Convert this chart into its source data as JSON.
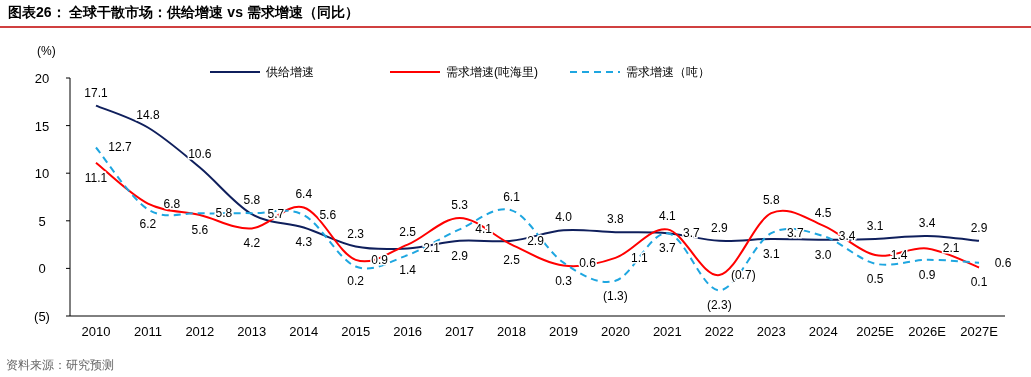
{
  "chart_data": {
    "type": "line",
    "title": "图表26：  全球干散市场：供给增速 vs 需求增速（同比）",
    "ylabel": "(%)",
    "categories": [
      "2010",
      "2011",
      "2012",
      "2013",
      "2014",
      "2015",
      "2016",
      "2017",
      "2018",
      "2019",
      "2020",
      "2021",
      "2022",
      "2023",
      "2024",
      "2025E",
      "2026E",
      "2027E"
    ],
    "series": [
      {
        "name": "供给增速",
        "color": "#0f1f5c",
        "line_style": "solid",
        "values": [
          17.1,
          14.8,
          10.6,
          5.7,
          4.3,
          2.3,
          2.1,
          2.9,
          2.9,
          4.0,
          3.8,
          3.7,
          2.9,
          3.1,
          3.0,
          3.1,
          3.4,
          2.9
        ],
        "value_labels": [
          "17.1",
          "14.8",
          "10.6",
          "5.7",
          "4.3",
          "2.3",
          "2.1",
          "2.9",
          "2.9",
          "4.0",
          "3.8",
          "3.7",
          "2.9",
          "3.1",
          "3.0",
          "3.1",
          "3.4",
          "2.9"
        ]
      },
      {
        "name": "需求增速(吨海里)",
        "color": "#ff0000",
        "line_style": "solid",
        "values": [
          11.1,
          6.8,
          5.6,
          4.2,
          6.4,
          0.9,
          2.5,
          5.3,
          2.5,
          0.3,
          1.1,
          4.1,
          -0.7,
          5.8,
          4.5,
          1.4,
          2.1,
          0.1
        ],
        "value_labels": [
          "11.1",
          "6.8",
          "5.6",
          "4.2",
          "6.4",
          "0.9",
          "2.5",
          "5.3",
          "2.5",
          "0.3",
          "1.1",
          "4.1",
          "(0.7)",
          "5.8",
          "4.5",
          "1.4",
          "2.1",
          "0.1"
        ]
      },
      {
        "name": "需求增速（吨）",
        "color": "#1ea6e0",
        "line_style": "dashed",
        "values": [
          12.7,
          6.2,
          5.8,
          5.8,
          5.6,
          0.2,
          1.4,
          4.1,
          6.1,
          0.6,
          -1.3,
          3.7,
          -2.3,
          3.7,
          3.4,
          0.5,
          0.9,
          0.6
        ],
        "value_labels": [
          "12.7",
          "6.2",
          "5.8",
          "5.8",
          "5.6",
          "0.2",
          "1.4",
          "4.1",
          "6.1",
          "0.6",
          "(1.3)",
          "3.7",
          "(2.3)",
          "3.7",
          "3.4",
          "0.5",
          "0.9",
          "0.6"
        ]
      }
    ],
    "ylim": [
      -5,
      20
    ],
    "yticks": [
      {
        "value": -5,
        "label": "(5)"
      },
      0,
      5,
      10,
      15,
      20
    ],
    "legend": "top",
    "grid": false,
    "marker": "none",
    "annotations": [
      "资料来源：研究预测"
    ]
  }
}
